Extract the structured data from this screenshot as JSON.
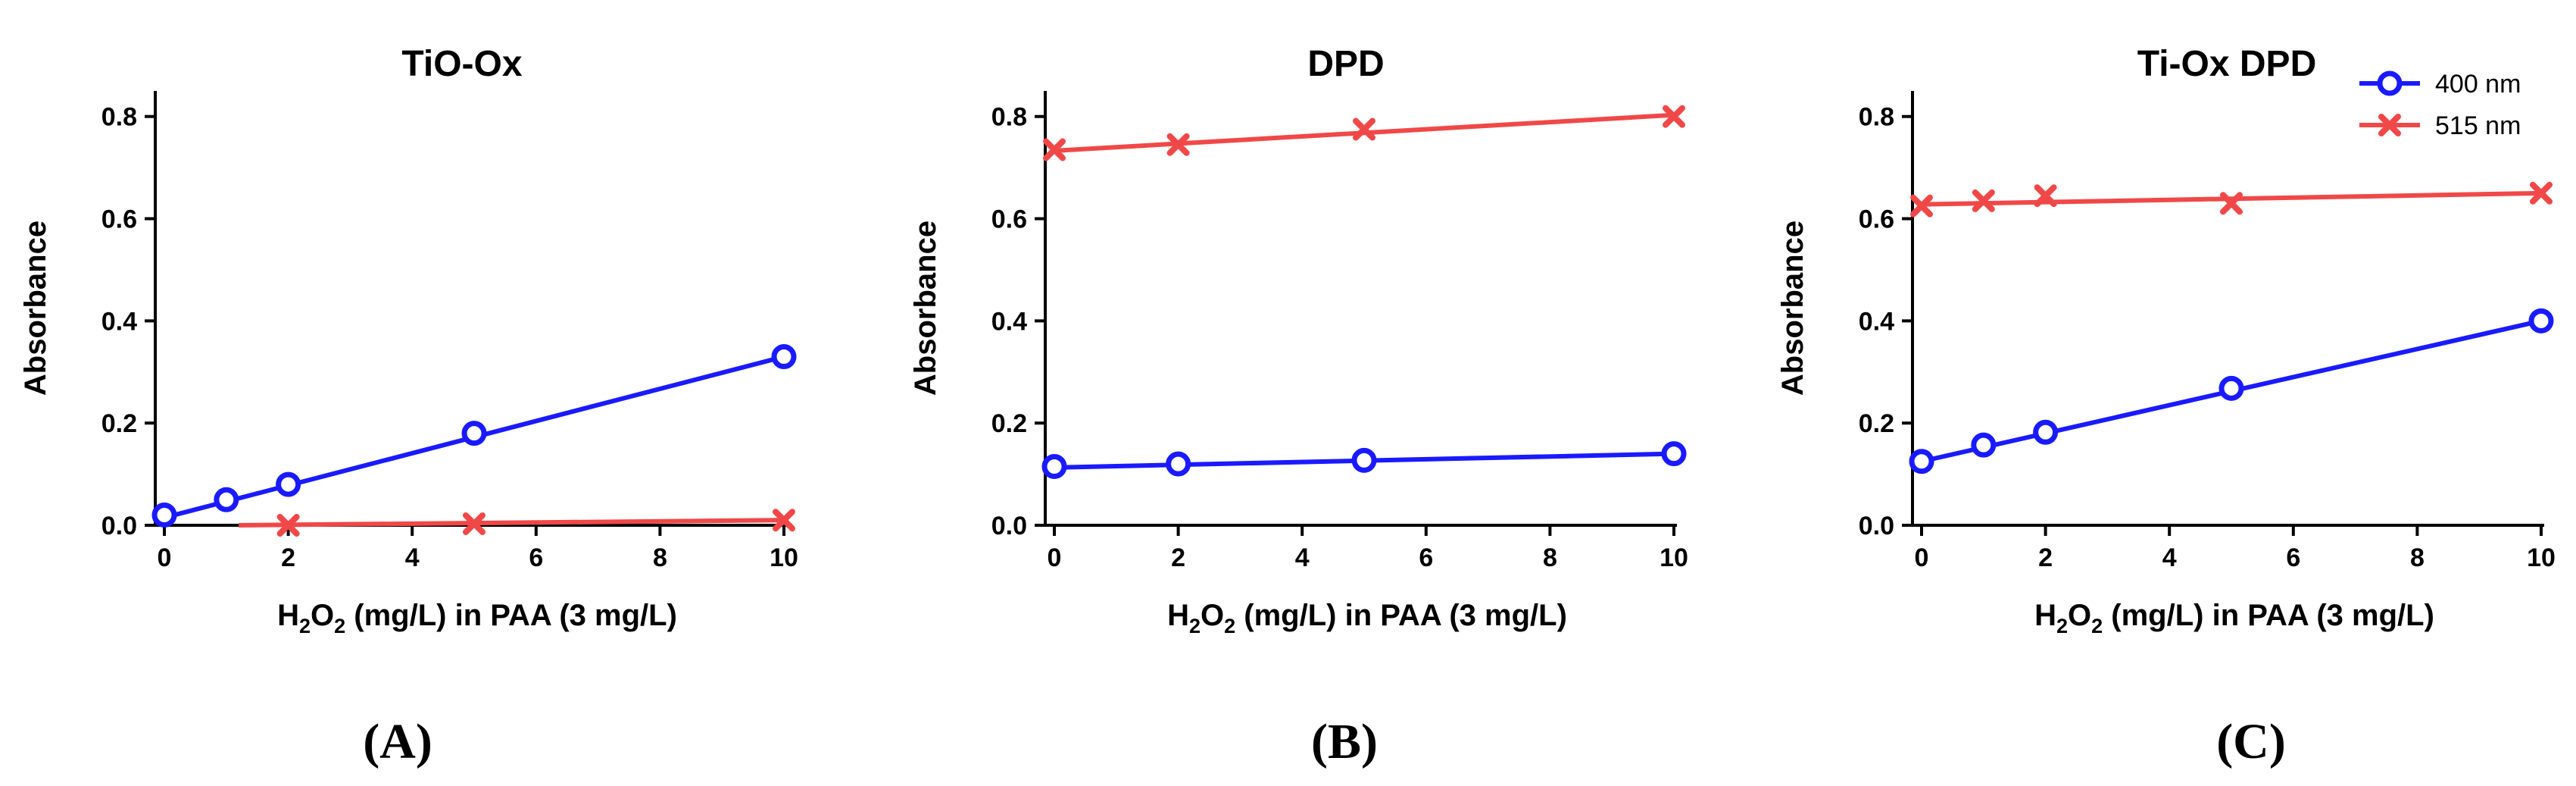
{
  "colors": {
    "blue": "#1a1aff",
    "red": "#f04848",
    "axis": "#000000"
  },
  "legend": [
    {
      "label": "400 nm",
      "marker": "circle-icon"
    },
    {
      "label": "515 nm",
      "marker": "cross-icon"
    }
  ],
  "chart_data": [
    {
      "type": "line",
      "title": "TiO-Ox",
      "caption": "(A)",
      "xlabel_parts": [
        "H",
        "2",
        "O",
        "2",
        " (mg/L) in PAA (3 mg/L)"
      ],
      "ylabel": "Absorbance",
      "xlim": [
        0,
        10
      ],
      "ylim": [
        0,
        0.85
      ],
      "xticks": [
        0,
        2,
        4,
        6,
        8,
        10
      ],
      "yticks": [
        0.0,
        0.2,
        0.4,
        0.6,
        0.8
      ],
      "series": [
        {
          "name": "400 nm",
          "marker": "circle",
          "x": [
            0,
            1,
            2,
            5,
            10
          ],
          "y": [
            0.02,
            0.05,
            0.08,
            0.18,
            0.33
          ],
          "fit": [
            [
              0,
              0.015
            ],
            [
              10,
              0.33
            ]
          ]
        },
        {
          "name": "515 nm",
          "marker": "cross",
          "x": [
            2,
            5,
            10
          ],
          "y": [
            0.0,
            0.003,
            0.01
          ],
          "fit": [
            [
              1.2,
              0.0
            ],
            [
              10,
              0.01
            ]
          ]
        }
      ]
    },
    {
      "type": "line",
      "title": "DPD",
      "caption": "(B)",
      "xlabel_parts": [
        "H",
        "2",
        "O",
        "2",
        " (mg/L) in PAA (3 mg/L)"
      ],
      "ylabel": "Absorbance",
      "xlim": [
        0,
        10
      ],
      "ylim": [
        0,
        0.85
      ],
      "xticks": [
        0,
        2,
        4,
        6,
        8,
        10
      ],
      "yticks": [
        0.0,
        0.2,
        0.4,
        0.6,
        0.8
      ],
      "series": [
        {
          "name": "400 nm",
          "marker": "circle",
          "x": [
            0,
            2,
            5,
            10
          ],
          "y": [
            0.115,
            0.12,
            0.127,
            0.14
          ],
          "fit": [
            [
              0,
              0.113
            ],
            [
              10,
              0.14
            ]
          ]
        },
        {
          "name": "515 nm",
          "marker": "cross",
          "x": [
            0,
            2,
            5,
            10
          ],
          "y": [
            0.735,
            0.745,
            0.775,
            0.8
          ],
          "fit": [
            [
              0,
              0.733
            ],
            [
              10,
              0.803
            ]
          ]
        }
      ]
    },
    {
      "type": "line",
      "title": "Ti-Ox DPD",
      "caption": "(C)",
      "xlabel_parts": [
        "H",
        "2",
        "O",
        "2",
        " (mg/L) in PAA (3 mg/L)"
      ],
      "ylabel": "Absorbance",
      "xlim": [
        0,
        10
      ],
      "ylim": [
        0,
        0.85
      ],
      "xticks": [
        0,
        2,
        4,
        6,
        8,
        10
      ],
      "yticks": [
        0.0,
        0.2,
        0.4,
        0.6,
        0.8
      ],
      "series": [
        {
          "name": "400 nm",
          "marker": "circle",
          "x": [
            0,
            1,
            2,
            5,
            10
          ],
          "y": [
            0.125,
            0.157,
            0.182,
            0.268,
            0.4
          ],
          "fit": [
            [
              0,
              0.125
            ],
            [
              10,
              0.4
            ]
          ]
        },
        {
          "name": "515 nm",
          "marker": "cross",
          "x": [
            0,
            1,
            2,
            5,
            10
          ],
          "y": [
            0.625,
            0.635,
            0.645,
            0.63,
            0.65
          ],
          "fit": [
            [
              0,
              0.628
            ],
            [
              10,
              0.65
            ]
          ]
        }
      ]
    }
  ]
}
